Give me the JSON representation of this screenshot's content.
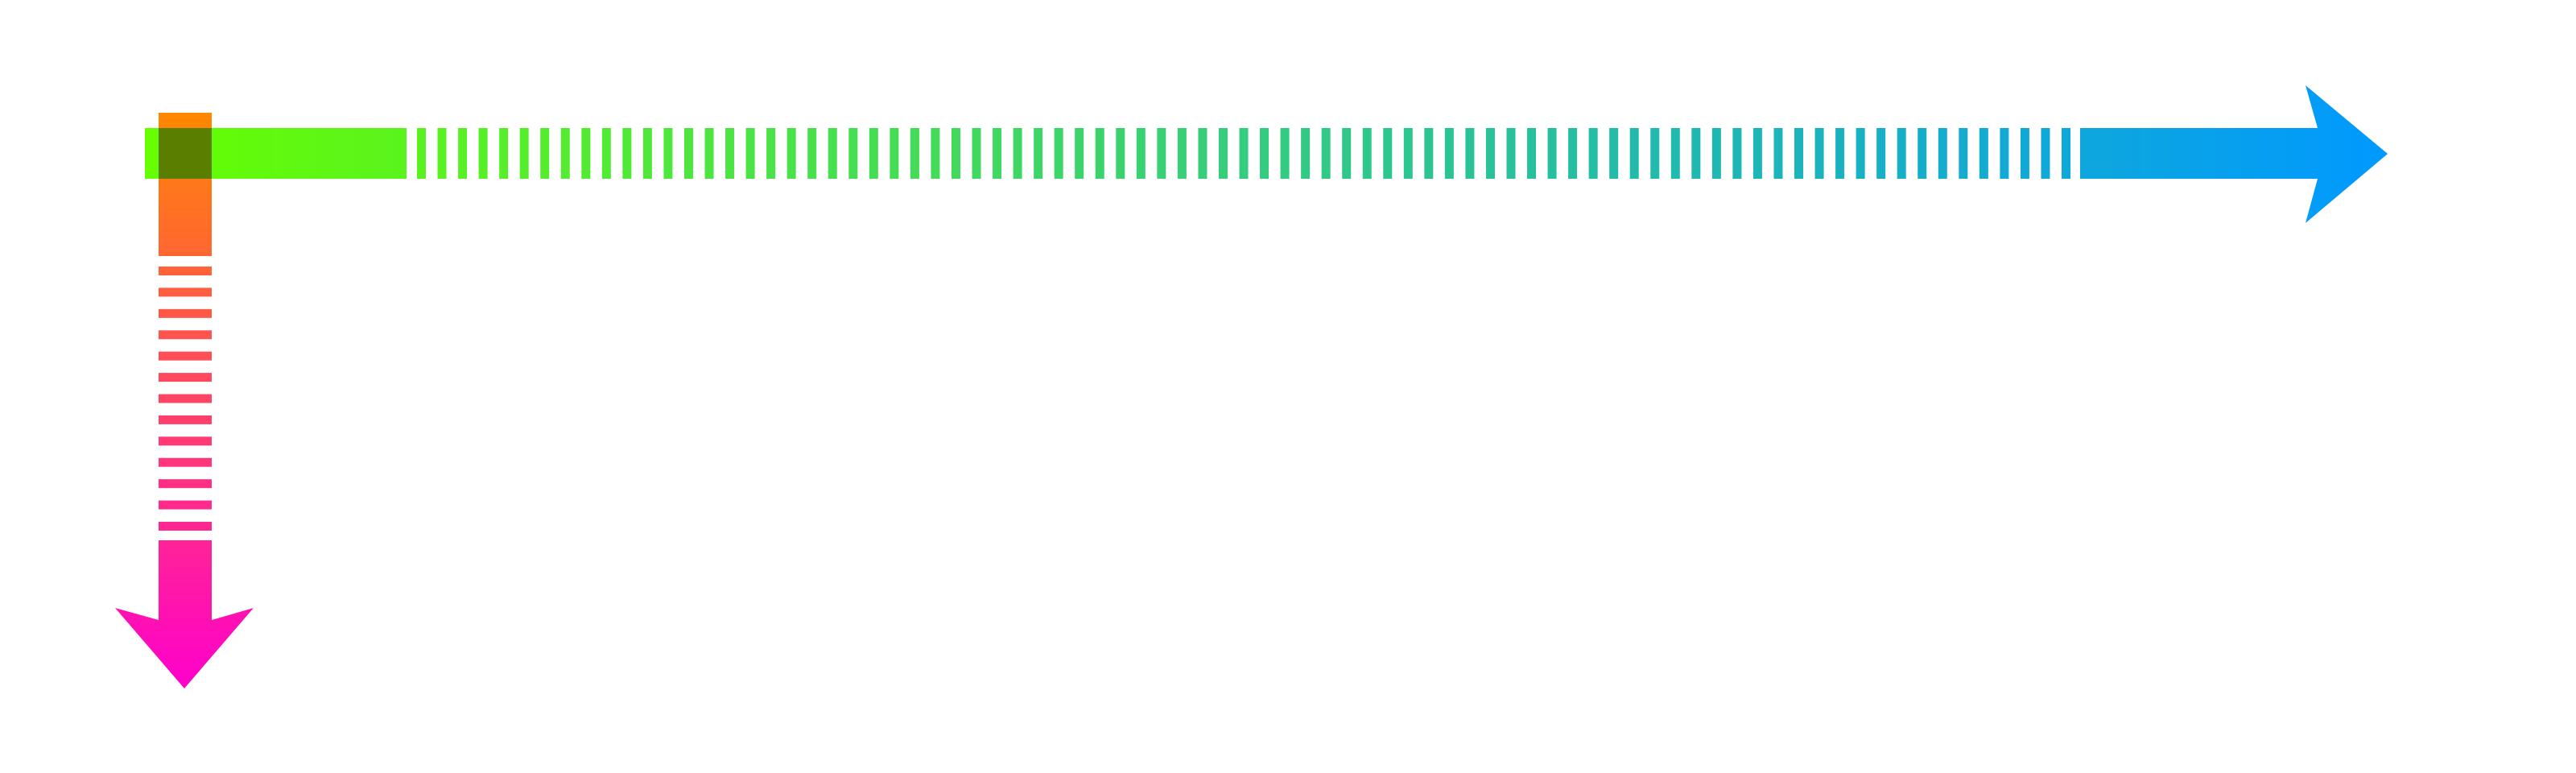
{
  "diagram": {
    "background_color": "#ffffff",
    "horizontal_arrow": {
      "icon": "arrow-right-icon",
      "direction": "right",
      "style": "solid start, dashed middle, solid end with arrowhead",
      "gradient_start_color": "#66ff00",
      "gradient_end_color": "#0099ff",
      "dash_count": 81
    },
    "vertical_arrow": {
      "icon": "arrow-down-icon",
      "direction": "down",
      "style": "solid start, dashed middle, solid end with arrowhead",
      "gradient_start_color": "#ff8800",
      "gradient_end_color": "#ff00cc",
      "dash_count": 13
    },
    "overlap_color": "#5a7f00"
  }
}
